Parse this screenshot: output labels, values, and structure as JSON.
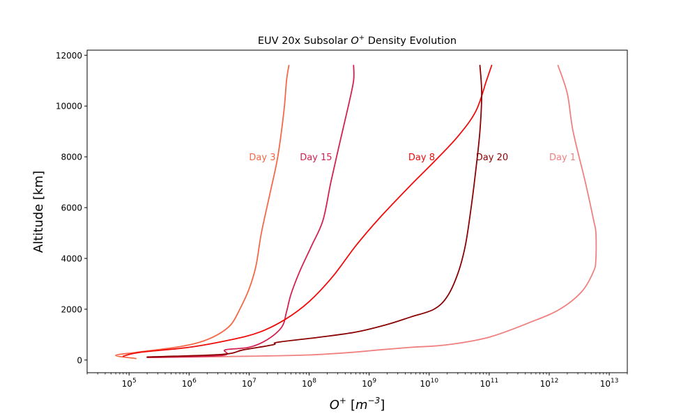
{
  "chart_data": {
    "type": "line",
    "title": "EUV 20x Subsolar O+ Density Evolution",
    "title_parts": {
      "prefix": "EUV 20x Subsolar ",
      "species": "O",
      "charge": "+",
      "suffix": " Density Evolution"
    },
    "xlabel": "O+ [m^-3]",
    "xlabel_parts": {
      "species": "O",
      "charge": "+",
      "unit_base": "m",
      "unit_exp": "−3"
    },
    "ylabel": "Altitude [km]",
    "x_scale": "log",
    "xlim": [
      20000.0,
      20000000000000.0
    ],
    "ylim": [
      -500,
      12200
    ],
    "x_ticks": [
      {
        "base": "10",
        "exp": "5",
        "value": 100000.0
      },
      {
        "base": "10",
        "exp": "6",
        "value": 1000000.0
      },
      {
        "base": "10",
        "exp": "7",
        "value": 10000000.0
      },
      {
        "base": "10",
        "exp": "8",
        "value": 100000000.0
      },
      {
        "base": "10",
        "exp": "9",
        "value": 1000000000.0
      },
      {
        "base": "10",
        "exp": "10",
        "value": 10000000000.0
      },
      {
        "base": "10",
        "exp": "11",
        "value": 100000000000.0
      },
      {
        "base": "10",
        "exp": "12",
        "value": 1000000000000.0
      },
      {
        "base": "10",
        "exp": "13",
        "value": 10000000000000.0
      }
    ],
    "y_ticks": [
      {
        "label": "0",
        "value": 0
      },
      {
        "label": "2000",
        "value": 2000
      },
      {
        "label": "4000",
        "value": 4000
      },
      {
        "label": "6000",
        "value": 6000
      },
      {
        "label": "8000",
        "value": 8000
      },
      {
        "label": "10000",
        "value": 10000
      },
      {
        "label": "12000",
        "value": 12000
      }
    ],
    "series": [
      {
        "name": "Day 1",
        "color": "#f08080",
        "label": {
          "text": "Day 1",
          "x": 1000000000000.0,
          "y": 8000
        },
        "points": [
          [
            250000.0,
            100
          ],
          [
            10000000.0,
            150
          ],
          [
            100000000.0,
            200
          ],
          [
            500000000.0,
            300
          ],
          [
            1500000000.0,
            400
          ],
          [
            5000000000.0,
            500
          ],
          [
            20000000000.0,
            600
          ],
          [
            100000000000.0,
            900
          ],
          [
            500000000000.0,
            1500
          ],
          [
            1500000000000.0,
            2000
          ],
          [
            3500000000000.0,
            2700
          ],
          [
            5500000000000.0,
            3500
          ],
          [
            6000000000000.0,
            4000
          ],
          [
            6000000000000.0,
            5000
          ],
          [
            5500000000000.0,
            5500
          ],
          [
            4000000000000.0,
            7000
          ],
          [
            2500000000000.0,
            9000
          ],
          [
            2000000000000.0,
            10500
          ],
          [
            1400000000000.0,
            11600
          ]
        ]
      },
      {
        "name": "Day 3",
        "color": "#f56847",
        "label": {
          "text": "Day 3",
          "x": 10000000.0,
          "y": 8000
        },
        "points": [
          [
            130000.0,
            60
          ],
          [
            60000.0,
            180
          ],
          [
            130000.0,
            300
          ],
          [
            600000.0,
            500
          ],
          [
            1500000.0,
            700
          ],
          [
            3000000.0,
            1000
          ],
          [
            5000000.0,
            1400
          ],
          [
            7000000.0,
            2000
          ],
          [
            10000000.0,
            2800
          ],
          [
            13000000.0,
            3700
          ],
          [
            16000000.0,
            5000
          ],
          [
            22000000.0,
            6500
          ],
          [
            30000000.0,
            8000
          ],
          [
            38000000.0,
            9800
          ],
          [
            42000000.0,
            11000
          ],
          [
            46000000.0,
            11600
          ]
        ]
      },
      {
        "name": "Day 15",
        "color": "#d42050",
        "label": {
          "text": "Day 15",
          "x": 70000000.0,
          "y": 8000
        },
        "points": [
          [
            200000.0,
            100
          ],
          [
            3500000.0,
            180
          ],
          [
            4000000.0,
            400
          ],
          [
            10000000.0,
            500
          ],
          [
            20000000.0,
            800
          ],
          [
            35000000.0,
            1300
          ],
          [
            42000000.0,
            1900
          ],
          [
            50000000.0,
            2600
          ],
          [
            70000000.0,
            3500
          ],
          [
            110000000.0,
            4500
          ],
          [
            170000000.0,
            5500
          ],
          [
            230000000.0,
            7000
          ],
          [
            320000000.0,
            8500
          ],
          [
            450000000.0,
            10000
          ],
          [
            550000000.0,
            11000
          ],
          [
            550000000.0,
            11600
          ]
        ]
      },
      {
        "name": "Day 8",
        "color": "#f00b0b",
        "label": {
          "text": "Day 8",
          "x": 4500000000.0,
          "y": 8000
        },
        "points": [
          [
            80000.0,
            150
          ],
          [
            150000.0,
            300
          ],
          [
            1000000.0,
            500
          ],
          [
            5000000.0,
            800
          ],
          [
            15000000.0,
            1100
          ],
          [
            40000000.0,
            1600
          ],
          [
            100000000.0,
            2300
          ],
          [
            250000000.0,
            3300
          ],
          [
            600000000.0,
            4500
          ],
          [
            1500000000.0,
            5600
          ],
          [
            5000000000.0,
            6900
          ],
          [
            12000000000.0,
            7800
          ],
          [
            30000000000.0,
            8800
          ],
          [
            60000000000.0,
            9800
          ],
          [
            90000000000.0,
            11000
          ],
          [
            110000000000.0,
            11600
          ]
        ]
      },
      {
        "name": "Day 20",
        "color": "#8b0000",
        "label": {
          "text": "Day 20",
          "x": 60000000000.0,
          "y": 8000
        },
        "points": [
          [
            200000.0,
            120
          ],
          [
            3500000.0,
            220
          ],
          [
            8000000.0,
            400
          ],
          [
            25000000.0,
            600
          ],
          [
            30000000.0,
            700
          ],
          [
            150000000.0,
            900
          ],
          [
            600000000.0,
            1100
          ],
          [
            2000000000.0,
            1400
          ],
          [
            5000000000.0,
            1700
          ],
          [
            12000000000.0,
            2000
          ],
          [
            20000000000.0,
            2500
          ],
          [
            30000000000.0,
            3400
          ],
          [
            40000000000.0,
            4500
          ],
          [
            50000000000.0,
            6000
          ],
          [
            60000000000.0,
            7500
          ],
          [
            70000000000.0,
            9000
          ],
          [
            75000000000.0,
            10500
          ],
          [
            70000000000.0,
            11600
          ]
        ]
      }
    ]
  }
}
